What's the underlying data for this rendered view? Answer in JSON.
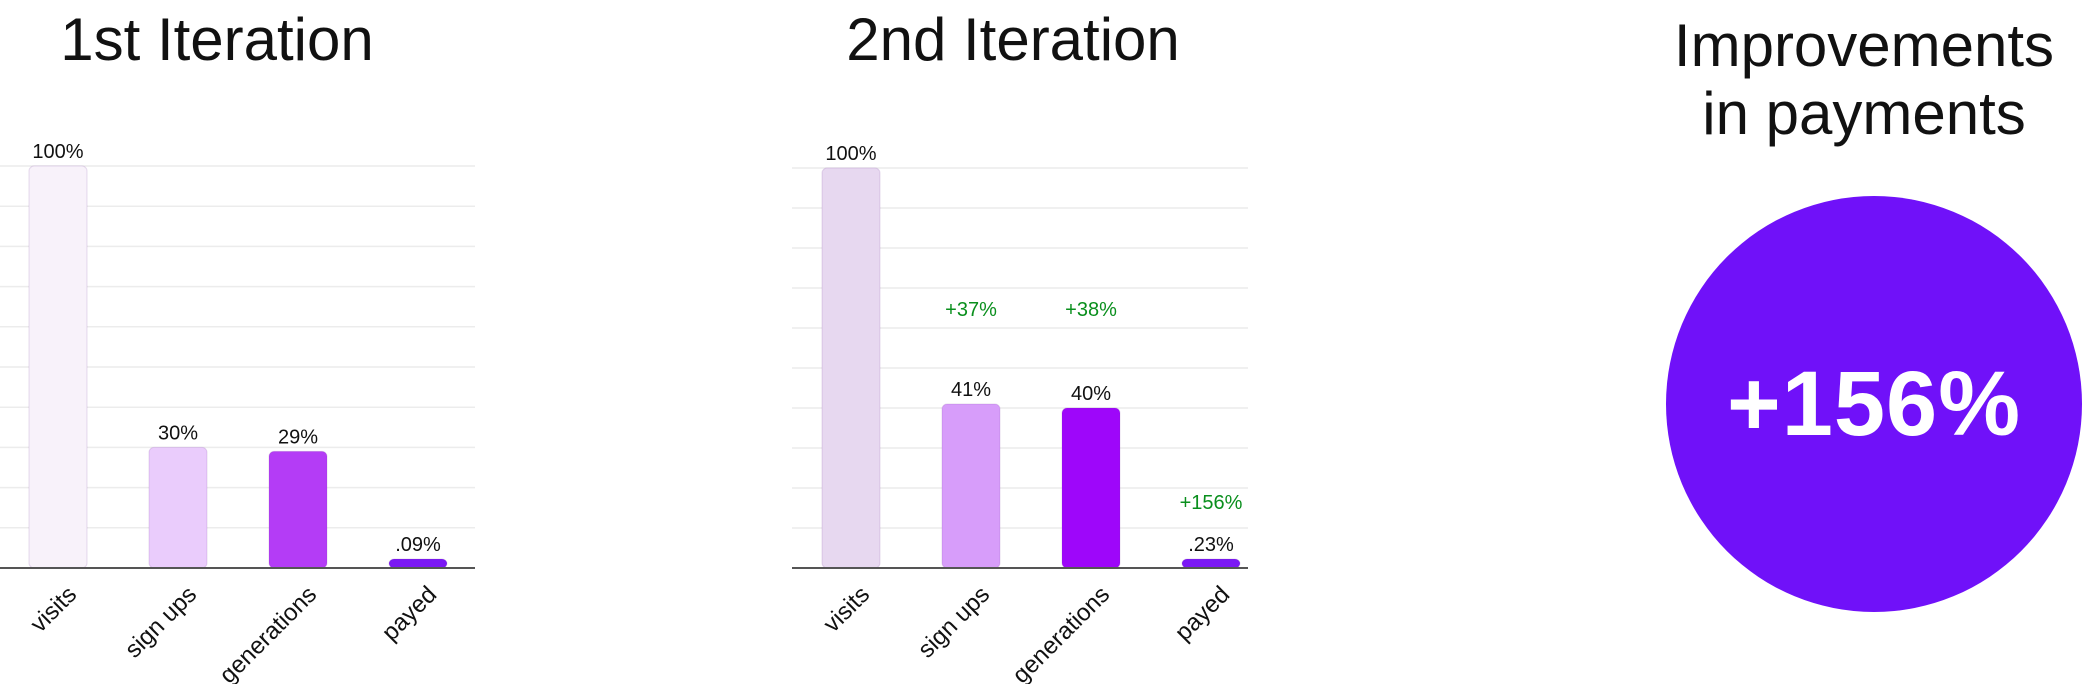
{
  "chart_data": [
    {
      "type": "bar",
      "title": "1st Iteration",
      "categories": [
        "visits",
        "sign ups",
        "generations",
        "payed"
      ],
      "values": [
        100,
        30,
        29,
        0.09
      ],
      "value_labels": [
        "100%",
        "30%",
        "29%",
        ".09%"
      ],
      "colors": [
        "#f8f2fa",
        "#eaccfc",
        "#b43cf6",
        "#7b18f4"
      ],
      "ylim": [
        0,
        100
      ],
      "grid": true
    },
    {
      "type": "bar",
      "title": "2nd Iteration",
      "categories": [
        "visits",
        "sign ups",
        "generations",
        "payed"
      ],
      "values": [
        100,
        41,
        40,
        0.23
      ],
      "value_labels": [
        "100%",
        "41%",
        "40%",
        ".23%"
      ],
      "improvement_labels": [
        "",
        "+37%",
        "+38%",
        "+156%"
      ],
      "colors": [
        "#e7d8f0",
        "#d79dfa",
        "#9e06fa",
        "#7b18f4"
      ],
      "ylim": [
        0,
        100
      ],
      "grid": true
    }
  ],
  "improvement": {
    "title_line1": "Improvements",
    "title_line2": "in payments",
    "value": "+156%",
    "color": "#7011f9"
  },
  "improvement_label_color": "#0a8f1d"
}
